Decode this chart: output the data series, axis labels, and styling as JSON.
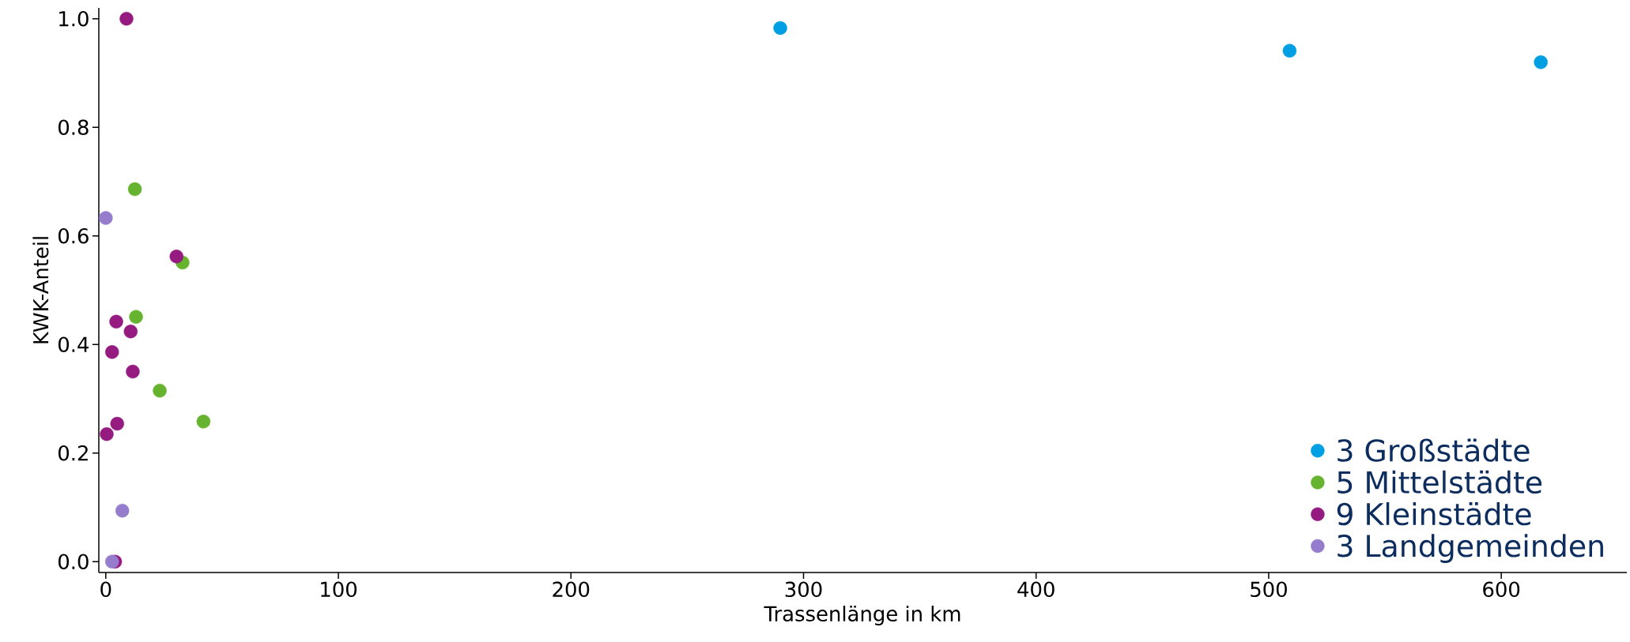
{
  "chart_data": {
    "type": "scatter",
    "xlabel": "Trassenlänge in km",
    "ylabel": "KWK-Anteil",
    "xlim": [
      -3,
      654
    ],
    "ylim": [
      -0.02,
      1.02
    ],
    "xticks": [
      0,
      100,
      200,
      300,
      400,
      500,
      600
    ],
    "yticks": [
      {
        "value": 0,
        "label": "0.0"
      },
      {
        "value": 0.2,
        "label": "0.2"
      },
      {
        "value": 0.4,
        "label": "0.4"
      },
      {
        "value": 0.6,
        "label": "0.6"
      },
      {
        "value": 0.8,
        "label": "0.8"
      },
      {
        "value": 1,
        "label": "1.0"
      }
    ],
    "legend": "bottom right",
    "grid": false,
    "series": [
      {
        "name": "3 Großstädte",
        "color": "#009fe3",
        "x": [
          290,
          509,
          617
        ],
        "values": [
          0.983,
          0.941,
          0.92
        ]
      },
      {
        "name": "5 Mittelstädte",
        "color": "#65b32e",
        "x": [
          12.5,
          33,
          13,
          23.2,
          42
        ],
        "values": [
          0.686,
          0.551,
          0.451,
          0.315,
          0.258
        ]
      },
      {
        "name": "9 Kleinstädte",
        "color": "#951b81",
        "x": [
          8.9,
          30.4,
          4.5,
          10.7,
          2.7,
          11.6,
          4.9,
          0.4,
          4
        ],
        "values": [
          1.0,
          0.562,
          0.442,
          0.424,
          0.386,
          0.35,
          0.254,
          0.235,
          0
        ]
      },
      {
        "name": "3 Landgemeinden",
        "color": "#967ccc",
        "x": [
          0,
          7.1,
          2.7
        ],
        "values": [
          0.633,
          0.094,
          0
        ]
      }
    ]
  }
}
